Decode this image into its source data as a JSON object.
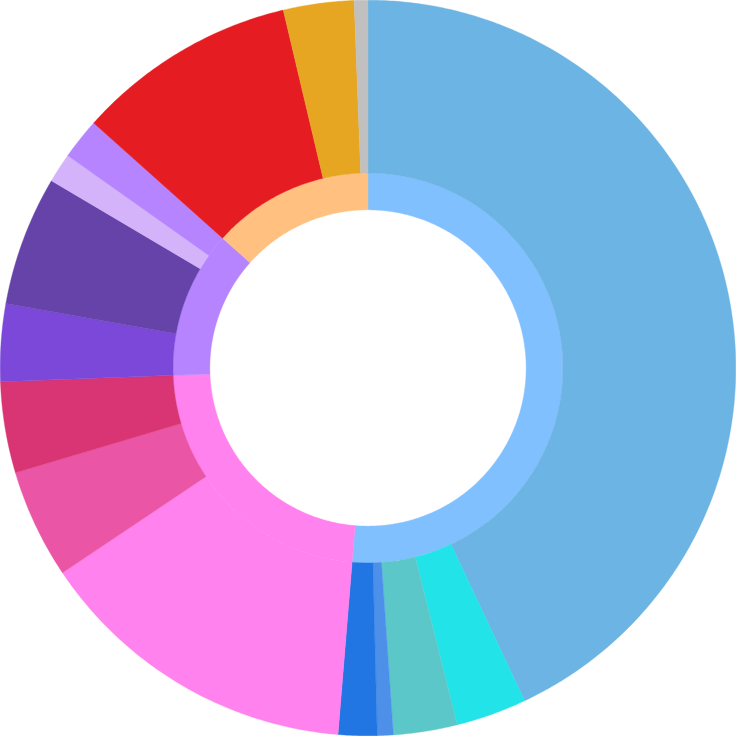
{
  "chart_data": {
    "type": "donut",
    "series": [
      {
        "values": [
          51.3,
          23.1,
          12.2,
          13.4
        ],
        "colors": [
          "#80c0ff",
          "#ff82ee",
          "#b584fe",
          "#ffc080"
        ]
      },
      {
        "values": [
          43.0,
          3.1,
          2.8,
          0.7,
          1.7,
          14.3,
          4.8,
          4.0,
          3.4,
          5.7,
          1.3,
          1.8,
          9.7,
          3.1,
          0.6
        ],
        "colors": [
          "#6cb4e4",
          "#22e3e8",
          "#5cc7c9",
          "#4d90ea",
          "#2176e3",
          "#ff82ee",
          "#eb55a5",
          "#d93574",
          "#7b48d9",
          "#6643a8",
          "#d4b3fb",
          "#b584fe",
          "#e51c21",
          "#e6a621",
          "#c0c0c0"
        ]
      }
    ]
  }
}
